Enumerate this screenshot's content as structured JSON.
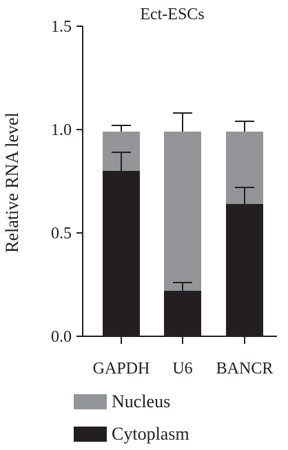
{
  "chart_data": {
    "type": "bar",
    "stacked": true,
    "title": "Ect-ESCs",
    "xlabel": "",
    "ylabel": "Relative RNA level",
    "categories": [
      "GAPDH",
      "U6",
      "BANCR"
    ],
    "ylim": [
      0,
      1.5
    ],
    "yticks": [
      0.0,
      0.5,
      1.0,
      1.5
    ],
    "ytick_labels": [
      "0.0",
      "0.5",
      "1.0",
      "1.5"
    ],
    "grid": false,
    "legend_position": "bottom",
    "series": [
      {
        "name": "Cytoplasm",
        "color": "#231f20",
        "values": [
          0.8,
          0.22,
          0.64
        ],
        "error": [
          0.09,
          0.04,
          0.08
        ]
      },
      {
        "name": "Nucleus",
        "color": "#939598",
        "values": [
          0.19,
          0.77,
          0.35
        ],
        "error": [
          0.03,
          0.09,
          0.05
        ]
      }
    ],
    "legend_order": [
      "Nucleus",
      "Cytoplasm"
    ]
  }
}
